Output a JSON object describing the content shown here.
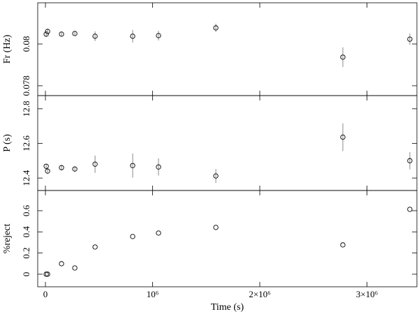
{
  "chart_data": [
    {
      "type": "scatter",
      "ylabel": "Fr (Hz)",
      "x": [
        7000,
        20000,
        150000,
        274000,
        463000,
        814000,
        1055000,
        1590000,
        2775000,
        3400000
      ],
      "values": [
        0.08047,
        0.0806,
        0.08047,
        0.0805,
        0.08037,
        0.08037,
        0.0804,
        0.08077,
        0.07937,
        0.08023
      ],
      "errors": [
        0.00013,
        0.00013,
        0.0001,
        0.0001,
        0.00023,
        0.0003,
        0.00023,
        0.0002,
        0.00047,
        0.00027
      ],
      "ylim": [
        0.07753,
        0.08197
      ],
      "yticks": [
        0.078,
        0.08
      ]
    },
    {
      "type": "scatter",
      "ylabel": "P (s)",
      "x": [
        7000,
        20000,
        150000,
        274000,
        463000,
        814000,
        1055000,
        1590000,
        2775000,
        3400000
      ],
      "values": [
        12.468,
        12.44,
        12.46,
        12.452,
        12.48,
        12.472,
        12.464,
        12.412,
        12.636,
        12.5
      ],
      "errors": [
        0.012,
        0.012,
        0.016,
        0.016,
        0.05,
        0.07,
        0.05,
        0.04,
        0.08,
        0.05
      ],
      "ylim": [
        12.328,
        12.876
      ],
      "yticks": [
        12.4,
        12.6,
        12.8
      ]
    },
    {
      "type": "scatter",
      "ylabel": "%reject",
      "xlabel": "Time (s)",
      "x": [
        7000,
        20000,
        150000,
        274000,
        463000,
        814000,
        1055000,
        1590000,
        2775000,
        3400000
      ],
      "values": [
        0,
        0,
        0.099,
        0.059,
        0.257,
        0.356,
        0.389,
        0.442,
        0.277,
        0.613
      ],
      "ylim": [
        -0.119,
        0.791
      ],
      "yticks": [
        0,
        0.2,
        0.4,
        0.6
      ],
      "xlim": [
        -72000,
        3466000
      ],
      "xticks": [
        0,
        {
          "value": 1000000,
          "label": "10⁶"
        },
        {
          "value": 2000000,
          "label": "2×10⁶"
        },
        {
          "value": 3000000,
          "label": "3×10⁶"
        }
      ]
    }
  ]
}
